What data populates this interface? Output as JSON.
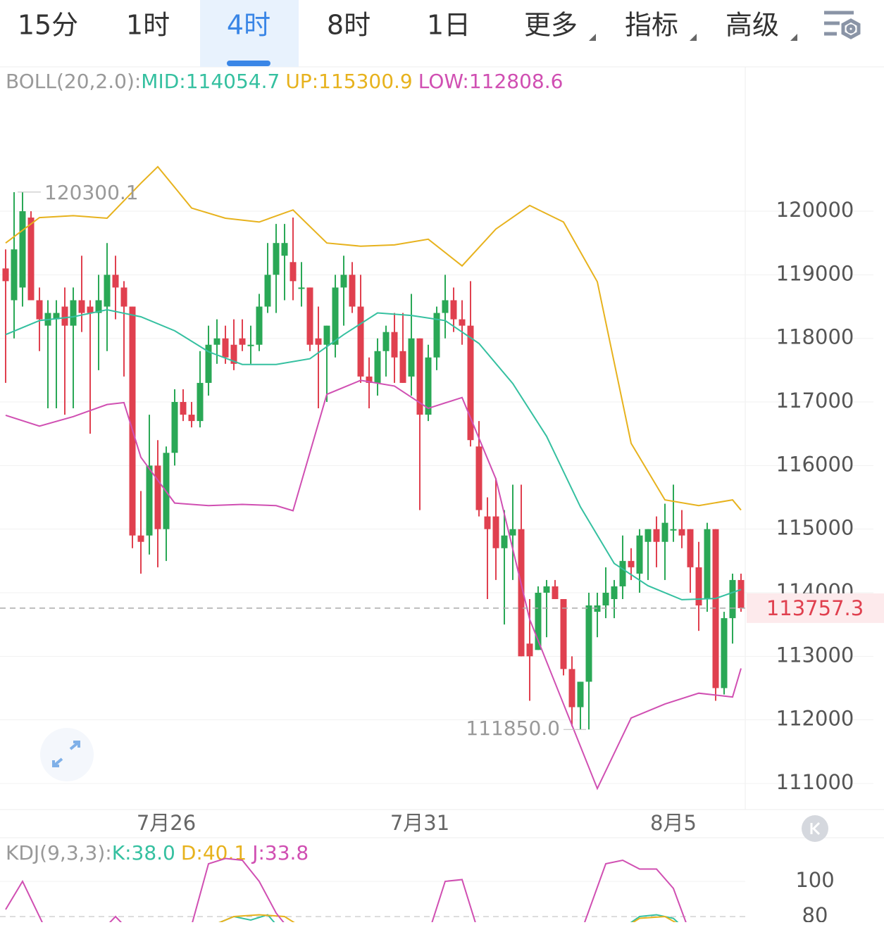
{
  "tabs": {
    "items": [
      "15分",
      "1时",
      "4时",
      "8时",
      "1日",
      "更多",
      "指标",
      "高级"
    ],
    "active": 2
  },
  "chart_data": [
    {
      "type": "candlestick",
      "legend": [
        "BOLL(20,2.0):",
        "MID:114054.7",
        "UP:115300.9",
        "LOW:112808.6"
      ],
      "categories": [
        null,
        null,
        null,
        null,
        null,
        null,
        null,
        null,
        null,
        null,
        null,
        null,
        null,
        null,
        null,
        null,
        null,
        null,
        null,
        "7月26",
        null,
        null,
        null,
        null,
        null,
        null,
        null,
        null,
        null,
        null,
        null,
        null,
        null,
        null,
        null,
        null,
        null,
        null,
        null,
        null,
        null,
        null,
        null,
        null,
        null,
        null,
        null,
        null,
        null,
        "7月31",
        null,
        null,
        null,
        null,
        null,
        null,
        null,
        null,
        null,
        null,
        null,
        null,
        null,
        null,
        null,
        null,
        null,
        null,
        null,
        null,
        null,
        null,
        null,
        null,
        null,
        null,
        null,
        null,
        null,
        "8月5",
        null,
        null,
        null,
        null,
        null,
        null,
        null,
        null
      ],
      "open": [
        119100,
        118600,
        118800,
        119900,
        118600,
        118200,
        118300,
        118500,
        118200,
        118600,
        118500,
        118400,
        118500,
        119000,
        118800,
        118500,
        114900,
        114900,
        116000,
        115000,
        116200,
        117000,
        116800,
        116700,
        117300,
        117900,
        118000,
        117900,
        118000,
        117900,
        117900,
        118500,
        119000,
        119300,
        119200,
        118800,
        118800,
        118000,
        117900,
        117900,
        118800,
        119000,
        118500,
        117400,
        117300,
        117800,
        118100,
        117800,
        117400,
        118000,
        116800,
        117700,
        118400,
        118600,
        118300,
        118200,
        116300,
        115200,
        115200,
        114700,
        114900,
        115000,
        113200,
        113100,
        114000,
        114100,
        113900,
        112800,
        112200,
        112600,
        113700,
        113800,
        113900,
        114100,
        114500,
        114300,
        114800,
        115000,
        114800,
        115000,
        115000,
        115000,
        114400,
        113900,
        115000,
        112500,
        113600,
        114200
      ],
      "high": [
        119400,
        120300,
        120300,
        120000,
        118800,
        118600,
        118600,
        118800,
        118800,
        119300,
        118600,
        119000,
        119500,
        119300,
        118900,
        118500,
        115600,
        116800,
        116400,
        116300,
        117200,
        117200,
        117000,
        117800,
        118200,
        118300,
        118200,
        118300,
        118300,
        118200,
        118700,
        119500,
        119800,
        119800,
        119900,
        119200,
        118800,
        118500,
        118200,
        119000,
        119300,
        119200,
        119000,
        117700,
        118000,
        118200,
        118400,
        118400,
        118700,
        118000,
        117900,
        118500,
        119000,
        118800,
        118600,
        118900,
        116700,
        115500,
        115800,
        115300,
        115700,
        115700,
        113900,
        114100,
        114200,
        114200,
        113900,
        113000,
        112600,
        114000,
        114000,
        114400,
        114200,
        114900,
        114700,
        115000,
        115000,
        115200,
        115400,
        115700,
        115300,
        115000,
        114800,
        115100,
        115000,
        113700,
        114300,
        114300
      ],
      "low": [
        117300,
        118000,
        118500,
        118600,
        117800,
        116900,
        116900,
        116800,
        116900,
        118100,
        116500,
        117500,
        117800,
        118300,
        117400,
        114700,
        114300,
        114600,
        114400,
        114500,
        116000,
        116700,
        116600,
        116600,
        117100,
        117600,
        117600,
        117500,
        117800,
        117600,
        117800,
        118400,
        118400,
        118600,
        118600,
        118500,
        117800,
        116900,
        117000,
        117700,
        118200,
        118400,
        117300,
        116900,
        117100,
        117400,
        117300,
        117300,
        117100,
        115300,
        116700,
        117500,
        118000,
        118100,
        117900,
        116300,
        115200,
        113900,
        114200,
        113500,
        114200,
        113000,
        112300,
        113100,
        113300,
        113900,
        112700,
        111900,
        111850,
        111850,
        113300,
        113600,
        113600,
        113900,
        114200,
        114000,
        114200,
        114400,
        114200,
        114800,
        114700,
        114000,
        113400,
        113700,
        112300,
        112400,
        113200,
        113700
      ],
      "close": [
        118900,
        119400,
        120000,
        118600,
        118300,
        118400,
        118400,
        118200,
        118600,
        118400,
        118400,
        118600,
        119000,
        118800,
        118500,
        114900,
        114800,
        116000,
        115000,
        116200,
        117000,
        116800,
        116700,
        117300,
        117900,
        118000,
        117700,
        117600,
        117900,
        117900,
        118500,
        119000,
        119500,
        119500,
        118900,
        118800,
        117900,
        117900,
        118200,
        118800,
        119000,
        118500,
        117400,
        117300,
        117800,
        118100,
        117700,
        117300,
        118000,
        116800,
        117700,
        118400,
        118600,
        118300,
        118200,
        116400,
        115300,
        115000,
        114700,
        114900,
        115000,
        113000,
        113000,
        114000,
        114100,
        113900,
        112800,
        112200,
        112600,
        113800,
        113800,
        114000,
        114100,
        114500,
        114400,
        114900,
        115000,
        114800,
        115100,
        115000,
        114900,
        114400,
        113800,
        115000,
        112500,
        113600,
        114200,
        113757.3
      ],
      "up_color": "#2aa856",
      "down_color": "#e0404f",
      "overlays": [
        {
          "name": "MID",
          "color": "#35c0a0",
          "x": [
            0,
            4,
            8,
            12,
            16,
            20,
            24,
            28,
            32,
            36,
            40,
            44,
            48,
            52,
            56,
            60,
            64,
            68,
            72,
            76,
            80,
            84,
            87
          ],
          "values": [
            118060,
            118280,
            118340,
            118450,
            118340,
            118120,
            117790,
            117590,
            117590,
            117680,
            118060,
            118400,
            118360,
            118280,
            117920,
            117290,
            116460,
            115350,
            114460,
            114110,
            113890,
            113910,
            114050
          ]
        },
        {
          "name": "UP",
          "color": "#e7b21d",
          "x": [
            0,
            4,
            8,
            12,
            16,
            18,
            22,
            26,
            30,
            34,
            38,
            42,
            46,
            50,
            54,
            58,
            62,
            66,
            70,
            74,
            78,
            82,
            86,
            87
          ],
          "values": [
            119500,
            119900,
            119930,
            119890,
            120440,
            120700,
            120050,
            119890,
            119830,
            120020,
            119500,
            119450,
            119470,
            119560,
            119140,
            119720,
            120090,
            119830,
            118890,
            116350,
            115460,
            115370,
            115460,
            115300
          ]
        },
        {
          "name": "LOW",
          "color": "#d04fb2",
          "x": [
            0,
            4,
            8,
            12,
            14,
            16,
            20,
            24,
            28,
            32,
            34,
            38,
            42,
            46,
            50,
            54,
            58,
            62,
            66,
            70,
            74,
            78,
            82,
            86,
            87
          ],
          "values": [
            116790,
            116620,
            116770,
            116960,
            116990,
            116130,
            115410,
            115370,
            115390,
            115370,
            115290,
            117120,
            117340,
            117250,
            116900,
            117070,
            115790,
            113580,
            112250,
            110920,
            112030,
            112250,
            112420,
            112360,
            112810
          ]
        }
      ],
      "max_label": 120300.1,
      "min_label": {
        "value": 111850,
        "label": "111850.0"
      },
      "last_price": 113757.3,
      "ylim": [
        110590,
        122270
      ],
      "yticks": [
        120000,
        119000,
        118000,
        117000,
        116000,
        115000,
        114000,
        113000,
        112000,
        111000
      ],
      "grid": true
    },
    {
      "type": "line",
      "legend": [
        "KDJ(9,3,3):",
        "K:38.0",
        "D:40.1",
        "J:33.8"
      ],
      "series": [
        {
          "name": "K",
          "color": "#35c0a0",
          "x": [
            22,
            27,
            29,
            31,
            33,
            72,
            75,
            77,
            79,
            81
          ],
          "values": [
            70,
            80,
            78,
            81,
            70,
            70,
            80,
            81,
            79,
            70
          ]
        },
        {
          "name": "D",
          "color": "#e7b21d",
          "x": [
            22,
            27,
            30,
            33,
            35,
            72,
            75,
            78,
            81
          ],
          "values": [
            70,
            80,
            81,
            80,
            74,
            70,
            79,
            80,
            72
          ]
        },
        {
          "name": "J",
          "color": "#d04fb2",
          "x": [
            0,
            2,
            5,
            12,
            13,
            14,
            22,
            24,
            26,
            28,
            30,
            32,
            34,
            50,
            52,
            54,
            56,
            68,
            71,
            73,
            75,
            77,
            79,
            81
          ],
          "values": [
            84,
            100,
            70,
            75,
            80,
            75,
            75,
            110,
            113,
            112,
            100,
            82,
            70,
            70,
            100,
            101,
            70,
            70,
            110,
            112,
            107,
            107,
            96,
            70
          ]
        }
      ],
      "ylim": [
        76.8,
        124.8
      ],
      "yticks": [
        100,
        80
      ],
      "grid": true
    }
  ]
}
